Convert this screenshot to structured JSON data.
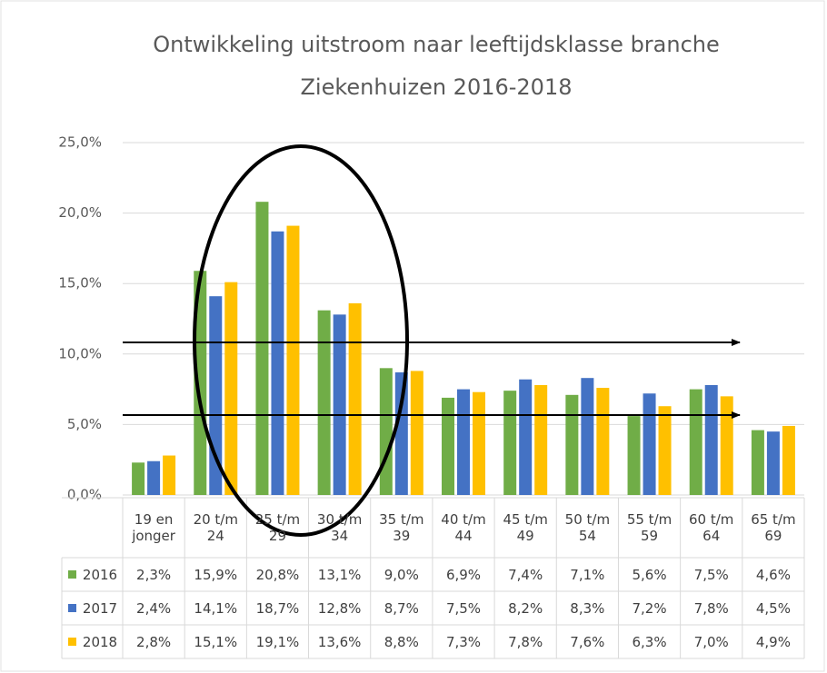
{
  "chart_data": {
    "type": "bar",
    "title_lines": [
      "Ontwikkeling uitstroom naar leeftijdsklasse branche",
      "Ziekenhuizen 2016-2018"
    ],
    "categories": [
      "19 en jonger",
      "20 t/m 24",
      "25 t/m 29",
      "30 t/m 34",
      "35 t/m 39",
      "40 t/m 44",
      "45 t/m 49",
      "50 t/m 54",
      "55 t/m 59",
      "60 t/m 64",
      "65 t/m 69"
    ],
    "series": [
      {
        "name": "2016",
        "color": "#70ad47",
        "values": [
          2.3,
          15.9,
          20.8,
          13.1,
          9.0,
          6.9,
          7.4,
          7.1,
          5.6,
          7.5,
          4.6
        ],
        "value_labels": [
          "2,3%",
          "15,9%",
          "20,8%",
          "13,1%",
          "9,0%",
          "6,9%",
          "7,4%",
          "7,1%",
          "5,6%",
          "7,5%",
          "4,6%"
        ]
      },
      {
        "name": "2017",
        "color": "#4472c4",
        "values": [
          2.4,
          14.1,
          18.7,
          12.8,
          8.7,
          7.5,
          8.2,
          8.3,
          7.2,
          7.8,
          4.5
        ],
        "value_labels": [
          "2,4%",
          "14,1%",
          "18,7%",
          "12,8%",
          "8,7%",
          "7,5%",
          "8,2%",
          "8,3%",
          "7,2%",
          "7,8%",
          "4,5%"
        ]
      },
      {
        "name": "2018",
        "color": "#ffc000",
        "values": [
          2.8,
          15.1,
          19.1,
          13.6,
          8.8,
          7.3,
          7.8,
          7.6,
          6.3,
          7.0,
          4.9
        ],
        "value_labels": [
          "2,8%",
          "15,1%",
          "19,1%",
          "13,6%",
          "8,8%",
          "7,3%",
          "7,8%",
          "7,6%",
          "6,3%",
          "7,0%",
          "4,9%"
        ]
      }
    ],
    "ylim": [
      0,
      25
    ],
    "yticks": [
      {
        "value": 0,
        "label": "0,0%"
      },
      {
        "value": 5,
        "label": "5,0%"
      },
      {
        "value": 10,
        "label": "10,0%"
      },
      {
        "value": 15,
        "label": "15,0%"
      },
      {
        "value": 20,
        "label": "20,0%"
      },
      {
        "value": 25,
        "label": "25,0%"
      }
    ],
    "grid": true
  }
}
